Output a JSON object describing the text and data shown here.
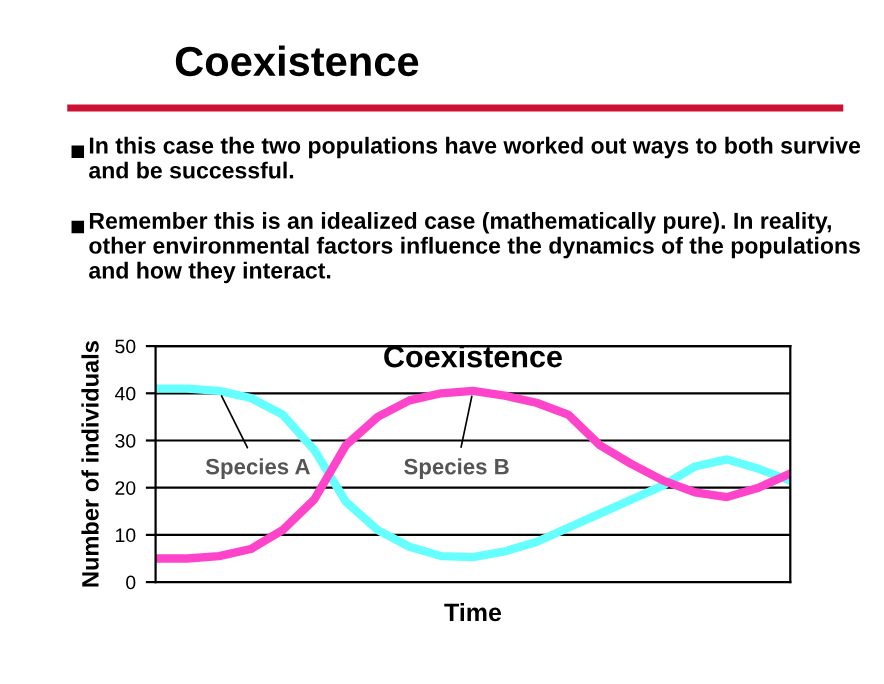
{
  "chart_data": {
    "type": "line",
    "title": "Coexistence",
    "subtitle": "Coexistence",
    "annotations": [
      "In this case the two populations have worked out ways to both survive and be successful.",
      "Remember this is an idealized case (mathematically pure). In reality, other environmental factors influence the dynamics of the populations and how they interact."
    ],
    "xlabel": "Time",
    "ylabel": "Number of individuals",
    "categories": [
      null,
      null,
      null,
      null,
      null,
      null,
      null,
      null,
      null,
      null,
      null,
      null,
      null,
      null,
      null,
      null,
      null,
      null,
      null,
      null,
      null
    ],
    "series": [
      {
        "name": "Species A",
        "color": "#66ffff",
        "values": [
          41,
          41,
          40.5,
          39,
          35.5,
          28,
          17,
          11,
          7.5,
          5.5,
          5.3,
          6.5,
          8.5,
          11.5,
          14.5,
          17.5,
          20.5,
          24.5,
          26,
          24,
          21.5
        ]
      },
      {
        "name": "Species B",
        "color": "#ff44cc",
        "values": [
          5,
          5,
          5.5,
          7,
          11,
          17.5,
          29,
          35,
          38.5,
          40,
          40.5,
          39.5,
          38,
          35.5,
          29,
          25,
          21.5,
          19,
          18,
          20,
          23
        ]
      }
    ],
    "ylim": [
      0,
      50
    ],
    "yticks": [
      0,
      10,
      20,
      30,
      40,
      50
    ],
    "grid": "y",
    "marker": "none",
    "line_style": "solid"
  }
}
